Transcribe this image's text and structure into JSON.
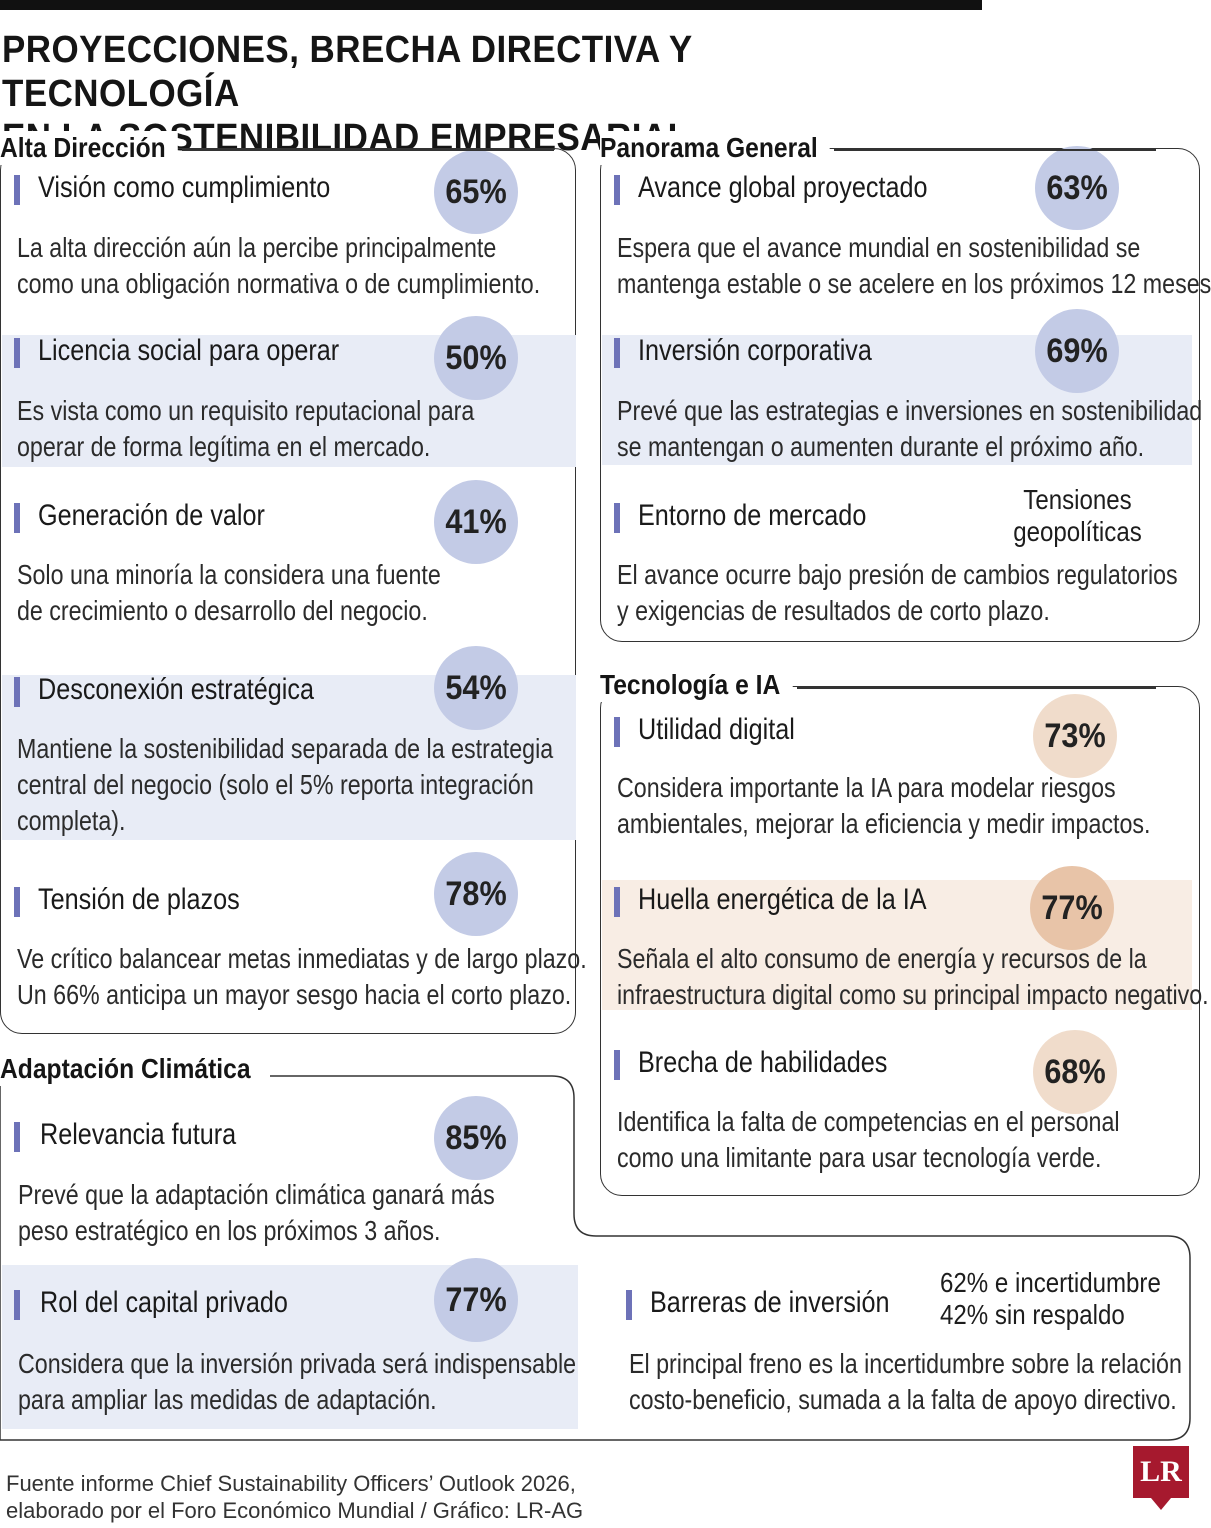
{
  "title": {
    "line1": "PROYECCIONES, BRECHA DIRECTIVA Y TECNOLOGÍA",
    "line2": "EN LA SOSTENIBILIDAD EMPRESARIAL"
  },
  "alta_direccion": {
    "title": "Alta Dirección",
    "items": [
      {
        "label": "Visión como cumplimiento",
        "value": "65%",
        "desc1": "La alta dirección aún la percibe principalmente",
        "desc2": "como una obligación normativa o de cumplimiento."
      },
      {
        "label": "Licencia social para operar",
        "value": "50%",
        "desc1": "Es vista como un requisito reputacional para",
        "desc2": "operar de forma legítima en el mercado."
      },
      {
        "label": "Generación de valor",
        "value": "41%",
        "desc1": "Solo una minoría la considera una fuente",
        "desc2": "de crecimiento o desarrollo del negocio."
      },
      {
        "label": "Desconexión estratégica",
        "value": "54%",
        "desc1": "Mantiene la sostenibilidad separada de la estrategia",
        "desc2": "central del negocio (solo el 5% reporta integración",
        "desc3": "completa)."
      },
      {
        "label": "Tensión de plazos",
        "value": "78%",
        "desc1": "Ve crítico balancear metas inmediatas y de largo plazo.",
        "desc2": "Un 66% anticipa un mayor sesgo hacia el corto plazo."
      }
    ]
  },
  "panorama": {
    "title": "Panorama General",
    "items": [
      {
        "label": "Avance global proyectado",
        "value": "63%",
        "desc1": "Espera que el avance mundial en sostenibilidad se",
        "desc2": "mantenga estable o se acelere en los próximos 12 meses"
      },
      {
        "label": "Inversión corporativa",
        "value": "69%",
        "desc1": "Prevé que las estrategias e inversiones en sostenibilidad",
        "desc2": "se mantengan o aumenten durante el próximo año."
      },
      {
        "label": "Entorno de mercado",
        "note1": "Tensiones",
        "note2": "geopolíticas",
        "desc1": "El avance ocurre bajo presión de cambios regulatorios",
        "desc2": "y exigencias de resultados de corto plazo."
      }
    ]
  },
  "tecnologia": {
    "title": "Tecnología e IA",
    "items": [
      {
        "label": "Utilidad digital",
        "value": "73%",
        "desc1": "Considera importante la IA para modelar riesgos",
        "desc2": "ambientales, mejorar la eficiencia y medir impactos."
      },
      {
        "label": "Huella energética de la IA",
        "value": "77%",
        "desc1": "Señala el alto consumo de energía y recursos de la",
        "desc2": "infraestructura digital como su principal impacto negativo."
      },
      {
        "label": "Brecha de habilidades",
        "value": "68%",
        "desc1": "Identifica la falta de competencias en el personal",
        "desc2": "como una limitante para usar tecnología verde."
      }
    ]
  },
  "adaptacion": {
    "title": "Adaptación Climática",
    "items": [
      {
        "label": "Relevancia futura",
        "value": "85%",
        "desc1": "Prevé que la adaptación climática ganará más",
        "desc2": "peso estratégico en los próximos 3 años."
      },
      {
        "label": "Rol del capital privado",
        "value": "77%",
        "desc1": "Considera que la inversión privada será indispensable",
        "desc2": "para ampliar las medidas de adaptación."
      },
      {
        "label": "Barreras de inversión",
        "note1": "62% e incertidumbre",
        "note2": "42% sin respaldo",
        "desc1": "El principal freno es la incertidumbre sobre la relación",
        "desc2": "costo-beneficio, sumada a la falta de apoyo directivo."
      }
    ]
  },
  "source": {
    "line1": "Fuente informe Chief Sustainability Officers’ Outlook 2026,",
    "line2": "elaborado por el Foro Económico Mundial / Gráfico: LR-AG"
  },
  "logo": "LR",
  "colors": {
    "accent_bar": "#6d72b8",
    "blue_circle": "#c3cbe6",
    "blue_shade": "#e8ecf6",
    "warm_circle": "#f0dccb",
    "warm_shade": "#f8ede4"
  }
}
